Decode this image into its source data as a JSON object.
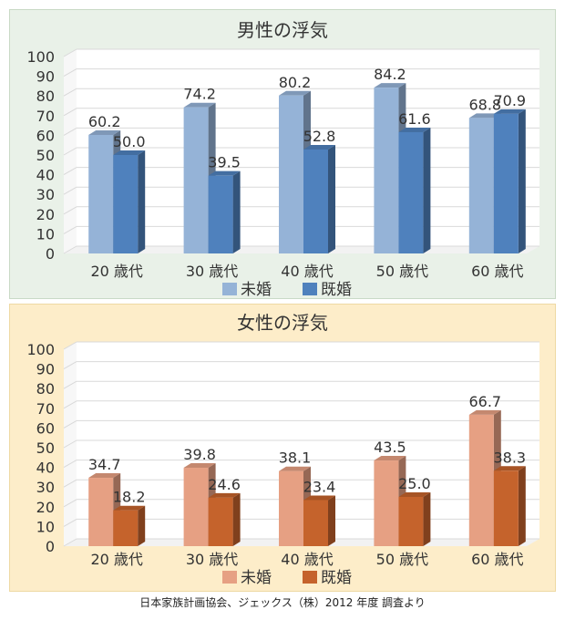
{
  "colors": {
    "male_panel_bg": "#e9f1e8",
    "male_panel_border": "#c9d9c6",
    "female_panel_bg": "#fdedc9",
    "female_panel_border": "#eed9a4",
    "male_unmarried": "#95b3d7",
    "male_married": "#4f81bd",
    "female_unmarried": "#e6a083",
    "female_married": "#c5632c"
  },
  "chart_data": [
    {
      "type": "bar",
      "title": "男性の浮気",
      "categories": [
        "20 歳代",
        "30 歳代",
        "40 歳代",
        "50 歳代",
        "60 歳代"
      ],
      "series": [
        {
          "name": "未婚",
          "values": [
            60.2,
            74.2,
            80.2,
            84.2,
            68.8
          ]
        },
        {
          "name": "既婚",
          "values": [
            50.0,
            39.5,
            52.8,
            61.6,
            70.9
          ]
        }
      ],
      "value_labels": [
        [
          "60.2",
          "74.2",
          "80.2",
          "84.2",
          "68.8"
        ],
        [
          "50.0",
          "39.5",
          "52.8",
          "61.6",
          "70.9"
        ]
      ],
      "yticks": [
        "0",
        "10",
        "20",
        "30",
        "40",
        "50",
        "60",
        "70",
        "80",
        "90",
        "100"
      ],
      "ylim": [
        0,
        100
      ],
      "grid": true,
      "legend": "bottom",
      "style": "3d"
    },
    {
      "type": "bar",
      "title": "女性の浮気",
      "categories": [
        "20 歳代",
        "30 歳代",
        "40 歳代",
        "50 歳代",
        "60 歳代"
      ],
      "series": [
        {
          "name": "未婚",
          "values": [
            34.7,
            39.8,
            38.1,
            43.5,
            66.7
          ]
        },
        {
          "name": "既婚",
          "values": [
            18.2,
            24.6,
            23.4,
            25.0,
            38.3
          ]
        }
      ],
      "value_labels": [
        [
          "34.7",
          "39.8",
          "38.1",
          "43.5",
          "66.7"
        ],
        [
          "18.2",
          "24.6",
          "23.4",
          "25.0",
          "38.3"
        ]
      ],
      "yticks": [
        "0",
        "10",
        "20",
        "30",
        "40",
        "50",
        "60",
        "70",
        "80",
        "90",
        "100"
      ],
      "ylim": [
        0,
        100
      ],
      "grid": true,
      "legend": "bottom",
      "style": "3d"
    }
  ],
  "footer": {
    "source": "日本家族計画協会、ジェックス（株）2012 年度 調査より"
  }
}
